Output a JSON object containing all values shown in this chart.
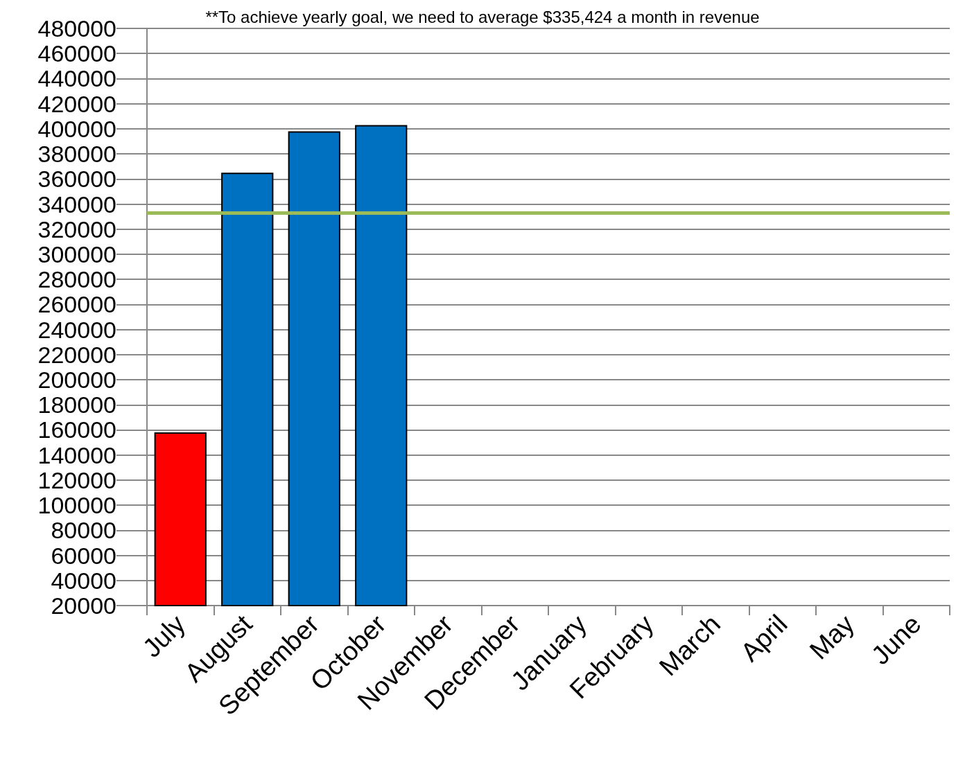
{
  "chart_data": {
    "type": "bar",
    "annotations": [
      "**To achieve yearly goal, we need to average $335,424 a month in revenue"
    ],
    "categories": [
      "July",
      "August",
      "September",
      "October",
      "November",
      "December",
      "January",
      "February",
      "March",
      "April",
      "May",
      "June"
    ],
    "values": [
      158000,
      365000,
      398000,
      403000,
      null,
      null,
      null,
      null,
      null,
      null,
      null,
      null
    ],
    "colors": [
      "#ff0000",
      "#0070c0",
      "#0070c0",
      "#0070c0",
      null,
      null,
      null,
      null,
      null,
      null,
      null,
      null
    ],
    "ylim": [
      20000,
      480000
    ],
    "yticks": [
      20000,
      40000,
      60000,
      80000,
      100000,
      120000,
      140000,
      160000,
      180000,
      200000,
      220000,
      240000,
      260000,
      280000,
      300000,
      320000,
      340000,
      360000,
      380000,
      400000,
      420000,
      440000,
      460000,
      480000
    ],
    "grid": "y",
    "ref_lines": [
      {
        "axis": "y",
        "value": 333000,
        "color": "#9bbb59"
      }
    ]
  }
}
